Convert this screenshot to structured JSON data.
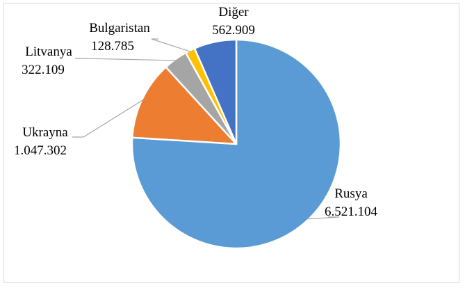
{
  "chart_data": {
    "type": "pie",
    "title": "",
    "categories": [
      "Rusya",
      "Ukrayna",
      "Litvanya",
      "Bulgaristan",
      "Diğer"
    ],
    "values": [
      6521104,
      1047302,
      322109,
      128785,
      562909
    ],
    "value_labels": [
      "6.521.104",
      "1.047.302",
      "322.109",
      "128.785",
      "562.909"
    ],
    "colors": [
      "#5B9BD5",
      "#ED7D31",
      "#A5A5A5",
      "#FFC000",
      "#4472C4"
    ],
    "start_angle_deg": 0,
    "direction": "clockwise",
    "legend": "none",
    "data_labels": "outside-with-leader-lines"
  }
}
